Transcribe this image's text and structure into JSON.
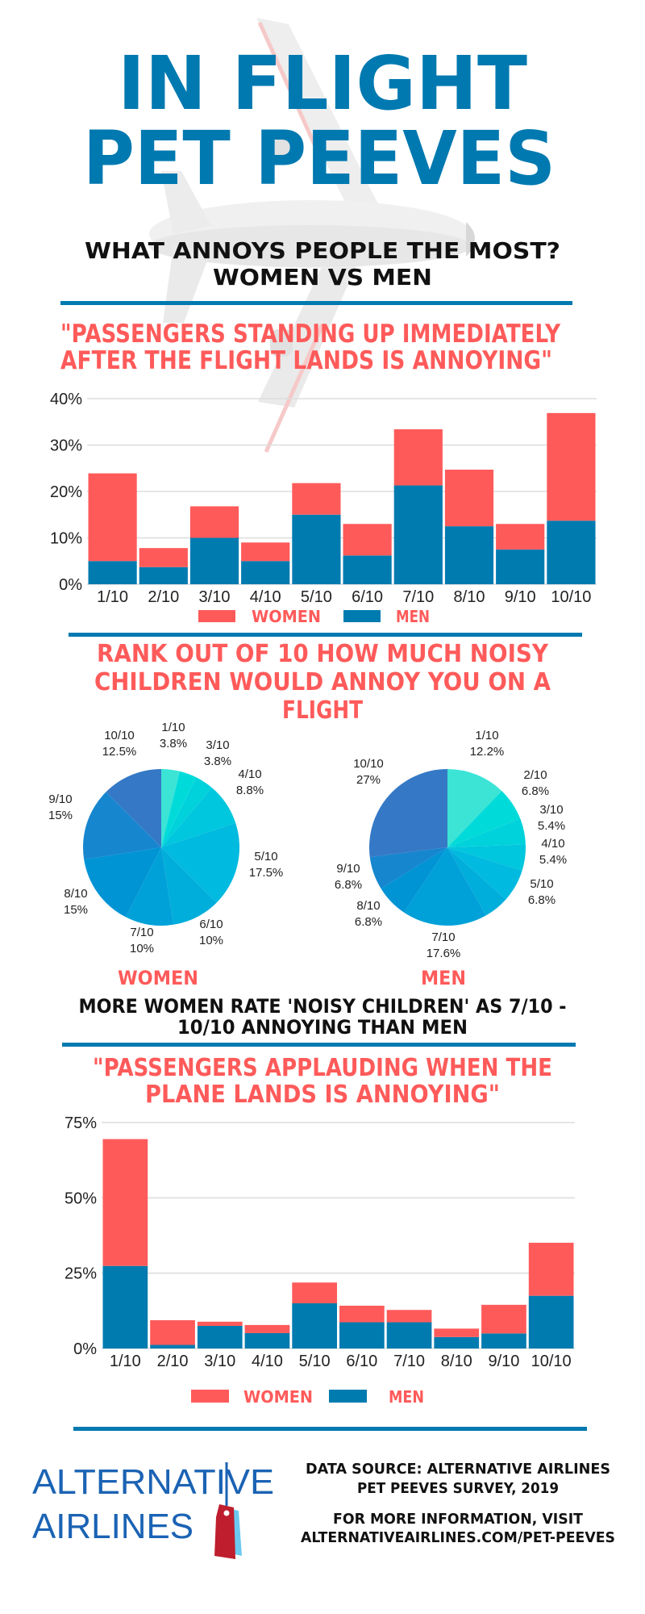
{
  "header": {
    "title_lines": [
      "IN FLIGHT",
      "PET PEEVES"
    ],
    "subtitle_lines": [
      "WHAT ANNOYS PEOPLE THE MOST?",
      "WOMEN VS MEN"
    ],
    "watermark_icon": "airplane-icon"
  },
  "colors": {
    "brand_blue": "#0079b0",
    "women": "#ff5a5a",
    "men": "#007bb0",
    "heading_red": "#ff5a5a",
    "rule": "#0079b0"
  },
  "legend": {
    "women": "WOMEN",
    "men": "MEN"
  },
  "pie_captions": {
    "women": "WOMEN",
    "men": "MEN"
  },
  "statement_lines": [
    "MORE WOMEN RATE 'NOISY CHILDREN' AS 7/10 -",
    "10/10 ANNOYING THAN MEN"
  ],
  "chart_data": [
    {
      "type": "bar",
      "stacked": true,
      "title_lines": [
        "\"PASSENGERS STANDING UP IMMEDIATELY",
        "AFTER THE FLIGHT LANDS IS ANNOYING\""
      ],
      "categories": [
        "1/10",
        "2/10",
        "3/10",
        "4/10",
        "5/10",
        "6/10",
        "7/10",
        "8/10",
        "9/10",
        "10/10"
      ],
      "series": [
        {
          "name": "MEN",
          "color": "#007bb0",
          "values": [
            5,
            3.7,
            10,
            5,
            15,
            6.2,
            21.3,
            12.5,
            7.5,
            13.7
          ]
        },
        {
          "name": "WOMEN",
          "color": "#ff5a5a",
          "values": [
            18.9,
            4.1,
            6.8,
            4.0,
            6.8,
            6.8,
            12.1,
            12.2,
            5.5,
            23.2
          ]
        }
      ],
      "yticks": [
        "0%",
        "10%",
        "20%",
        "30%",
        "40%"
      ],
      "ylim": [
        0,
        40
      ],
      "grid": true,
      "legend": "bottom"
    },
    {
      "type": "pie",
      "title_lines": [
        "RANK OUT OF 10 HOW MUCH NOISY",
        "CHILDREN WOULD ANNOY YOU ON A",
        "FLIGHT"
      ],
      "caption": "WOMEN",
      "slices": [
        {
          "label": "1/10",
          "value": 3.8,
          "text": "3.8%",
          "color": "#3ce4d6"
        },
        {
          "label": "",
          "value": 3.6,
          "text": "",
          "color": "#00dbd9"
        },
        {
          "label": "3/10",
          "value": 3.8,
          "text": "3.8%",
          "color": "#00d2db"
        },
        {
          "label": "4/10",
          "value": 8.8,
          "text": "8.8%",
          "color": "#00c7dd"
        },
        {
          "label": "5/10",
          "value": 17.5,
          "text": "17.5%",
          "color": "#00badf"
        },
        {
          "label": "6/10",
          "value": 10,
          "text": "10%",
          "color": "#00aedb"
        },
        {
          "label": "7/10",
          "value": 10,
          "text": "10%",
          "color": "#00a1d8"
        },
        {
          "label": "8/10",
          "value": 15,
          "text": "15%",
          "color": "#0094d5"
        },
        {
          "label": "9/10",
          "value": 15,
          "text": "15%",
          "color": "#1686cf"
        },
        {
          "label": "10/10",
          "value": 12.5,
          "text": "12.5%",
          "color": "#3579c6"
        }
      ]
    },
    {
      "type": "pie",
      "caption": "MEN",
      "slices": [
        {
          "label": "1/10",
          "value": 12.2,
          "text": "12.2%",
          "color": "#3ce4d6"
        },
        {
          "label": "2/10",
          "value": 6.8,
          "text": "6.8%",
          "color": "#00dbd9"
        },
        {
          "label": "3/10",
          "value": 5.4,
          "text": "5.4%",
          "color": "#00d2db"
        },
        {
          "label": "4/10",
          "value": 5.4,
          "text": "5.4%",
          "color": "#00c7dd"
        },
        {
          "label": "5/10",
          "value": 6.8,
          "text": "6.8%",
          "color": "#00badf"
        },
        {
          "label": "",
          "value": 5.2,
          "text": "",
          "color": "#00aedb"
        },
        {
          "label": "7/10",
          "value": 17.6,
          "text": "17.6%",
          "color": "#00a1d8"
        },
        {
          "label": "8/10",
          "value": 6.8,
          "text": "6.8%",
          "color": "#0094d5"
        },
        {
          "label": "9/10",
          "value": 6.8,
          "text": "6.8%",
          "color": "#1686cf"
        },
        {
          "label": "10/10",
          "value": 27,
          "text": "27%",
          "color": "#3579c6"
        }
      ]
    },
    {
      "type": "bar",
      "stacked": true,
      "title_lines": [
        "\"PASSENGERS APPLAUDING WHEN THE",
        "PLANE LANDS IS ANNOYING\""
      ],
      "categories": [
        "1/10",
        "2/10",
        "3/10",
        "4/10",
        "5/10",
        "6/10",
        "7/10",
        "8/10",
        "9/10",
        "10/10"
      ],
      "series": [
        {
          "name": "MEN",
          "color": "#007bb0",
          "values": [
            27.4,
            1.2,
            7.5,
            5.1,
            15.0,
            8.7,
            8.7,
            3.8,
            5.0,
            17.5
          ]
        },
        {
          "name": "WOMEN",
          "color": "#ff5a5a",
          "values": [
            42.1,
            8.2,
            1.4,
            2.7,
            6.9,
            5.5,
            4.1,
            2.8,
            9.5,
            17.6
          ]
        }
      ],
      "yticks": [
        "0%",
        "25%",
        "50%",
        "75%"
      ],
      "ylim": [
        0,
        75
      ],
      "grid": true,
      "legend": "bottom"
    }
  ],
  "footer": {
    "logo_lines": [
      "ALTERNATIVE",
      "AIRLINES"
    ],
    "logo_icon": "luggage-tag-icon",
    "source_lines": [
      "DATA SOURCE: ALTERNATIVE AIRLINES",
      "PET PEEVES SURVEY, 2019"
    ],
    "info_lines": [
      "FOR MORE INFORMATION, VISIT",
      "ALTERNATIVEAIRLINES.COM/PET-PEEVES"
    ]
  }
}
